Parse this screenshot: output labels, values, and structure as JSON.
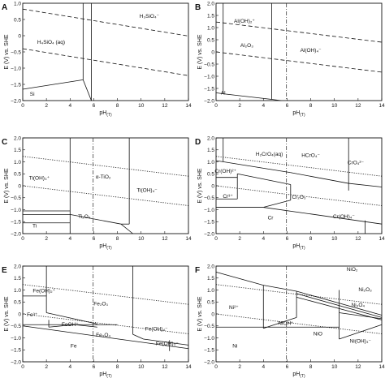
{
  "panels": [
    {
      "label": "A",
      "xlabel": "pH",
      "xlabel_sub": "(T)",
      "ylabel": "E (V) vs. SHE",
      "xticks": [
        "0",
        "2",
        "4",
        "6",
        "8",
        "10",
        "12",
        "14"
      ],
      "yticks": [
        "1.0",
        "0.5",
        "0",
        "−0.5",
        "−1.0",
        "−1.5",
        "−2.0"
      ],
      "regions": [
        "H₃SiO₄⁻",
        "H₄SiO₄ (aq)",
        "Si"
      ]
    },
    {
      "label": "B",
      "xlabel": "pH",
      "xlabel_sub": "(T)",
      "ylabel": "E (V) vs. SHE",
      "xticks": [
        "0",
        "2",
        "4",
        "6",
        "8",
        "10",
        "12",
        "14"
      ],
      "yticks": [
        "2.0",
        "1.5",
        "1.0",
        "0.5",
        "0",
        "−0.5",
        "−1.0",
        "−1.5",
        "−2.0"
      ],
      "regions": [
        "Al(OH)₂⁺",
        "Al₂O₃",
        "Al(OH)₄⁻",
        "Al"
      ]
    },
    {
      "label": "C",
      "xlabel": "pH",
      "xlabel_sub": "(T)",
      "ylabel": "E (V) vs. SHE",
      "xticks": [
        "0",
        "2",
        "4",
        "6",
        "8",
        "10",
        "12",
        "14"
      ],
      "yticks": [
        "2.0",
        "1.5",
        "1.0",
        "0.5",
        "0",
        "−0.5",
        "−1.0",
        "−1.5",
        "−2.0"
      ],
      "regions": [
        "Ti(OH)₃⁺",
        "α-TiO₂",
        "Ti(OH)₄⁻",
        "Ti₂O₃",
        "Ti"
      ]
    },
    {
      "label": "D",
      "xlabel": "pH",
      "xlabel_sub": "(T)",
      "ylabel": "E (V) vs. SHE",
      "xticks": [
        "0",
        "2",
        "4",
        "6",
        "8",
        "10",
        "12",
        "14"
      ],
      "yticks": [
        "2.0",
        "1.5",
        "1.0",
        "0.5",
        "0",
        "−0.5",
        "−1.0",
        "−1.5",
        "−2.0"
      ],
      "regions": [
        "H₂CrO₄(aq)",
        "HCrO₄⁻",
        "CrO₄²⁻",
        "Cr(OH)²⁺",
        "Cr³⁺",
        "Cr₂O₃",
        "Cr",
        "Cr(OH)₄⁻"
      ]
    },
    {
      "label": "E",
      "xlabel": "pH",
      "xlabel_sub": "(T)",
      "ylabel": "E (V) vs. SHE",
      "xticks": [
        "0",
        "2",
        "4",
        "6",
        "8",
        "10",
        "12",
        "14"
      ],
      "yticks": [
        "2.0",
        "1.5",
        "1.0",
        "0.5",
        "0",
        "−0.5",
        "−1.0",
        "−1.5",
        "−2.0"
      ],
      "regions": [
        "Fe(OH)₂⁺",
        "Fe³⁺",
        "FeOH⁺",
        "Fe₂O₃",
        "Fe₃O₄",
        "Fe(OH)₄⁻",
        "Fe",
        "Fe(OH)₃⁻"
      ]
    },
    {
      "label": "F",
      "xlabel": "pH",
      "xlabel_sub": "(T)",
      "ylabel": "E (V) vs. SHE",
      "xticks": [
        "0",
        "2",
        "4",
        "6",
        "8",
        "10",
        "12",
        "14"
      ],
      "yticks": [
        "2.0",
        "1.5",
        "1.0",
        "0.5",
        "0",
        "−0.5",
        "−1.0",
        "−1.5",
        "−2.0"
      ],
      "regions": [
        "NiO₂",
        "Ni₂O₃",
        "Ni²⁺",
        "Ni₃O₄",
        "NiOH⁺",
        "NiO",
        "Ni",
        "Ni(OH)₃⁻"
      ]
    }
  ]
}
